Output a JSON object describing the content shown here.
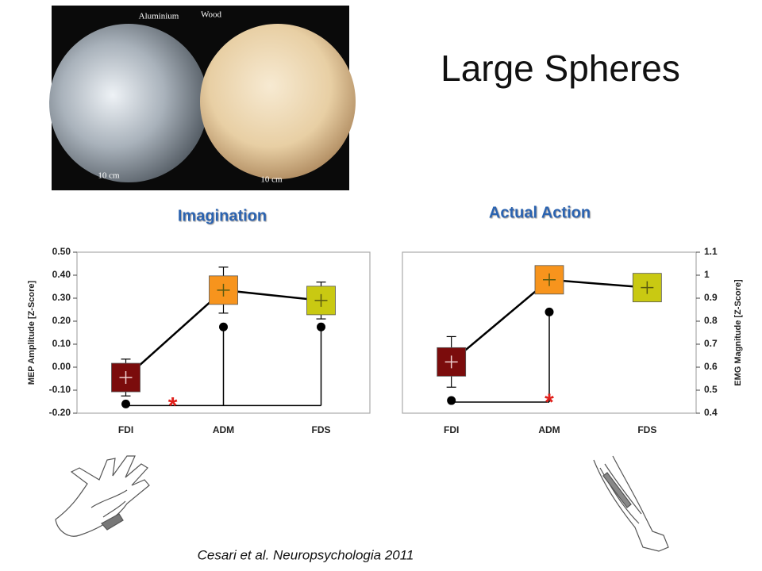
{
  "title": "Large Spheres",
  "photo_labels": [
    "Aluminium",
    "Wood",
    "10 cm",
    "10 cm"
  ],
  "citation": "Cesari et al. Neuropsychologia 2011",
  "chart_data": [
    {
      "type": "line",
      "title": "Imagination",
      "y_label": "MEP Amplitude [Z-Score]",
      "categories": [
        "FDI",
        "ADM",
        "FDS"
      ],
      "series": [
        {
          "values": [
            -0.045,
            0.335,
            0.29
          ],
          "errors": [
            0.08,
            0.1,
            0.08
          ],
          "colors": [
            "#7b0c0c",
            "#f7941d",
            "#c9c912"
          ],
          "marker": "square",
          "connect": true
        },
        {
          "values": [
            -0.16,
            0.175,
            0.175
          ],
          "color": "#000000",
          "marker": "dot",
          "connect": false
        }
      ],
      "ylim": [
        -0.2,
        0.5
      ],
      "yticks": [
        {
          "value": -0.2,
          "label": "-0.20"
        },
        {
          "value": -0.1,
          "label": "-0.10"
        },
        {
          "value": 0,
          "label": "0.00"
        },
        {
          "value": 0.1,
          "label": "0.10"
        },
        {
          "value": 0.2,
          "label": "0.20"
        },
        {
          "value": 0.3,
          "label": "0.30"
        },
        {
          "value": 0.4,
          "label": "0.40"
        },
        {
          "value": 0.5,
          "label": "0.50"
        }
      ],
      "annotations": [
        {
          "text": "*",
          "color": "#e0201b"
        }
      ]
    },
    {
      "type": "line",
      "title": "Actual Action",
      "y_label": "EMG Magnitude [Z-Score]",
      "categories": [
        "FDI",
        "ADM",
        "FDS"
      ],
      "series": [
        {
          "values": [
            0.623,
            0.98,
            0.946
          ],
          "errors": [
            0.11,
            null,
            null
          ],
          "colors": [
            "#7b0c0c",
            "#f7941d",
            "#c9c912"
          ],
          "marker": "square",
          "connect": true,
          "axis": "y2"
        },
        {
          "values": [
            0.455,
            0.84,
            null
          ],
          "color": "#000000",
          "marker": "dot",
          "connect": false,
          "axis": "y2"
        }
      ],
      "y2lim": [
        0.4,
        1.1
      ],
      "y2ticks": [
        0.4,
        0.5,
        0.6,
        0.7,
        0.8,
        0.9,
        1.0,
        1.1
      ],
      "annotations": [
        {
          "text": "*",
          "color": "#e0201b"
        }
      ]
    }
  ]
}
